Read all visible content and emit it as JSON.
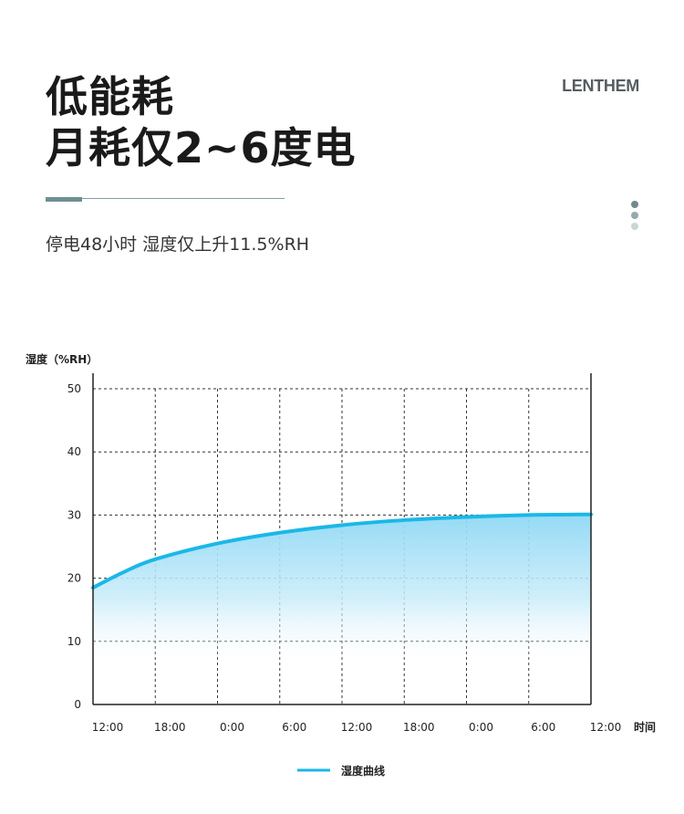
{
  "header": {
    "title_line1": "低能耗",
    "title_line2": "月耗仅2~6度电",
    "brand": "LENTHEM",
    "subtitle": "停电48小时 湿度仅上升11.5%RH"
  },
  "colors": {
    "accent": "#1ab8e8",
    "rule": "#6f8f91"
  },
  "chart_data": {
    "type": "area",
    "ylabel": "湿度（%RH）",
    "xlabel": "时间",
    "ylim": [
      0,
      50
    ],
    "yticks": [
      0,
      10,
      20,
      30,
      40,
      50
    ],
    "categories": [
      "12:00",
      "18:00",
      "0:00",
      "6:00",
      "12:00",
      "18:00",
      "0:00",
      "6:00",
      "12:00"
    ],
    "series": [
      {
        "name": "湿度曲线",
        "x": [
          0,
          0.5,
          1,
          2,
          3,
          4,
          5,
          6,
          7,
          8
        ],
        "values": [
          18.5,
          21.0,
          23.0,
          25.5,
          27.2,
          28.4,
          29.2,
          29.7,
          30.0,
          30.1
        ]
      }
    ],
    "grid": true,
    "legend": "bottom"
  }
}
